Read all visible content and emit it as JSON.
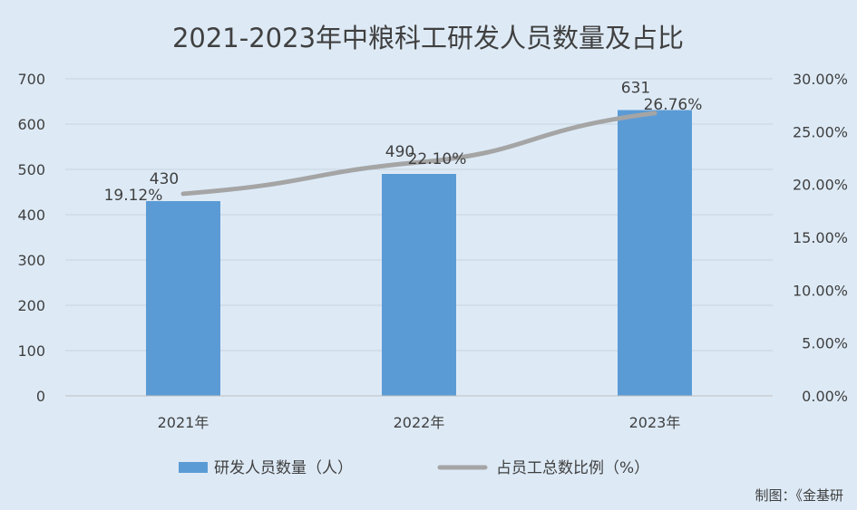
{
  "chart_data": {
    "type": "bar",
    "title": "2021-2023年中粮科工研发人员数量及占比",
    "categories": [
      "2021年",
      "2022年",
      "2023年"
    ],
    "series": [
      {
        "name": "研发人员数量（人）",
        "type": "bar",
        "axis": "left",
        "values": [
          430,
          490,
          631
        ],
        "labels": [
          "430",
          "490",
          "631"
        ],
        "color": "#5b9bd5"
      },
      {
        "name": "占员工总数比例（%）",
        "type": "line",
        "axis": "right",
        "values": [
          19.12,
          22.1,
          26.76
        ],
        "labels": [
          "19.12%",
          "22.10%",
          "26.76%"
        ],
        "color": "#a5a5a5"
      }
    ],
    "y_left": {
      "range": [
        0,
        700
      ],
      "ticks": [
        0,
        100,
        200,
        300,
        400,
        500,
        600,
        700
      ],
      "tick_labels": [
        "0",
        "100",
        "200",
        "300",
        "400",
        "500",
        "600",
        "700"
      ]
    },
    "y_right": {
      "range": [
        0,
        30
      ],
      "ticks": [
        0,
        5,
        10,
        15,
        20,
        25,
        30
      ],
      "tick_labels": [
        "0.00%",
        "5.00%",
        "10.00%",
        "15.00%",
        "20.00%",
        "25.00%",
        "30.00%"
      ]
    },
    "grid": true,
    "legend_position": "bottom"
  },
  "source_note": "制图：《金基研",
  "colors": {
    "background": "#ddeaf6",
    "grid": "#c8d3de",
    "text": "#404040"
  }
}
